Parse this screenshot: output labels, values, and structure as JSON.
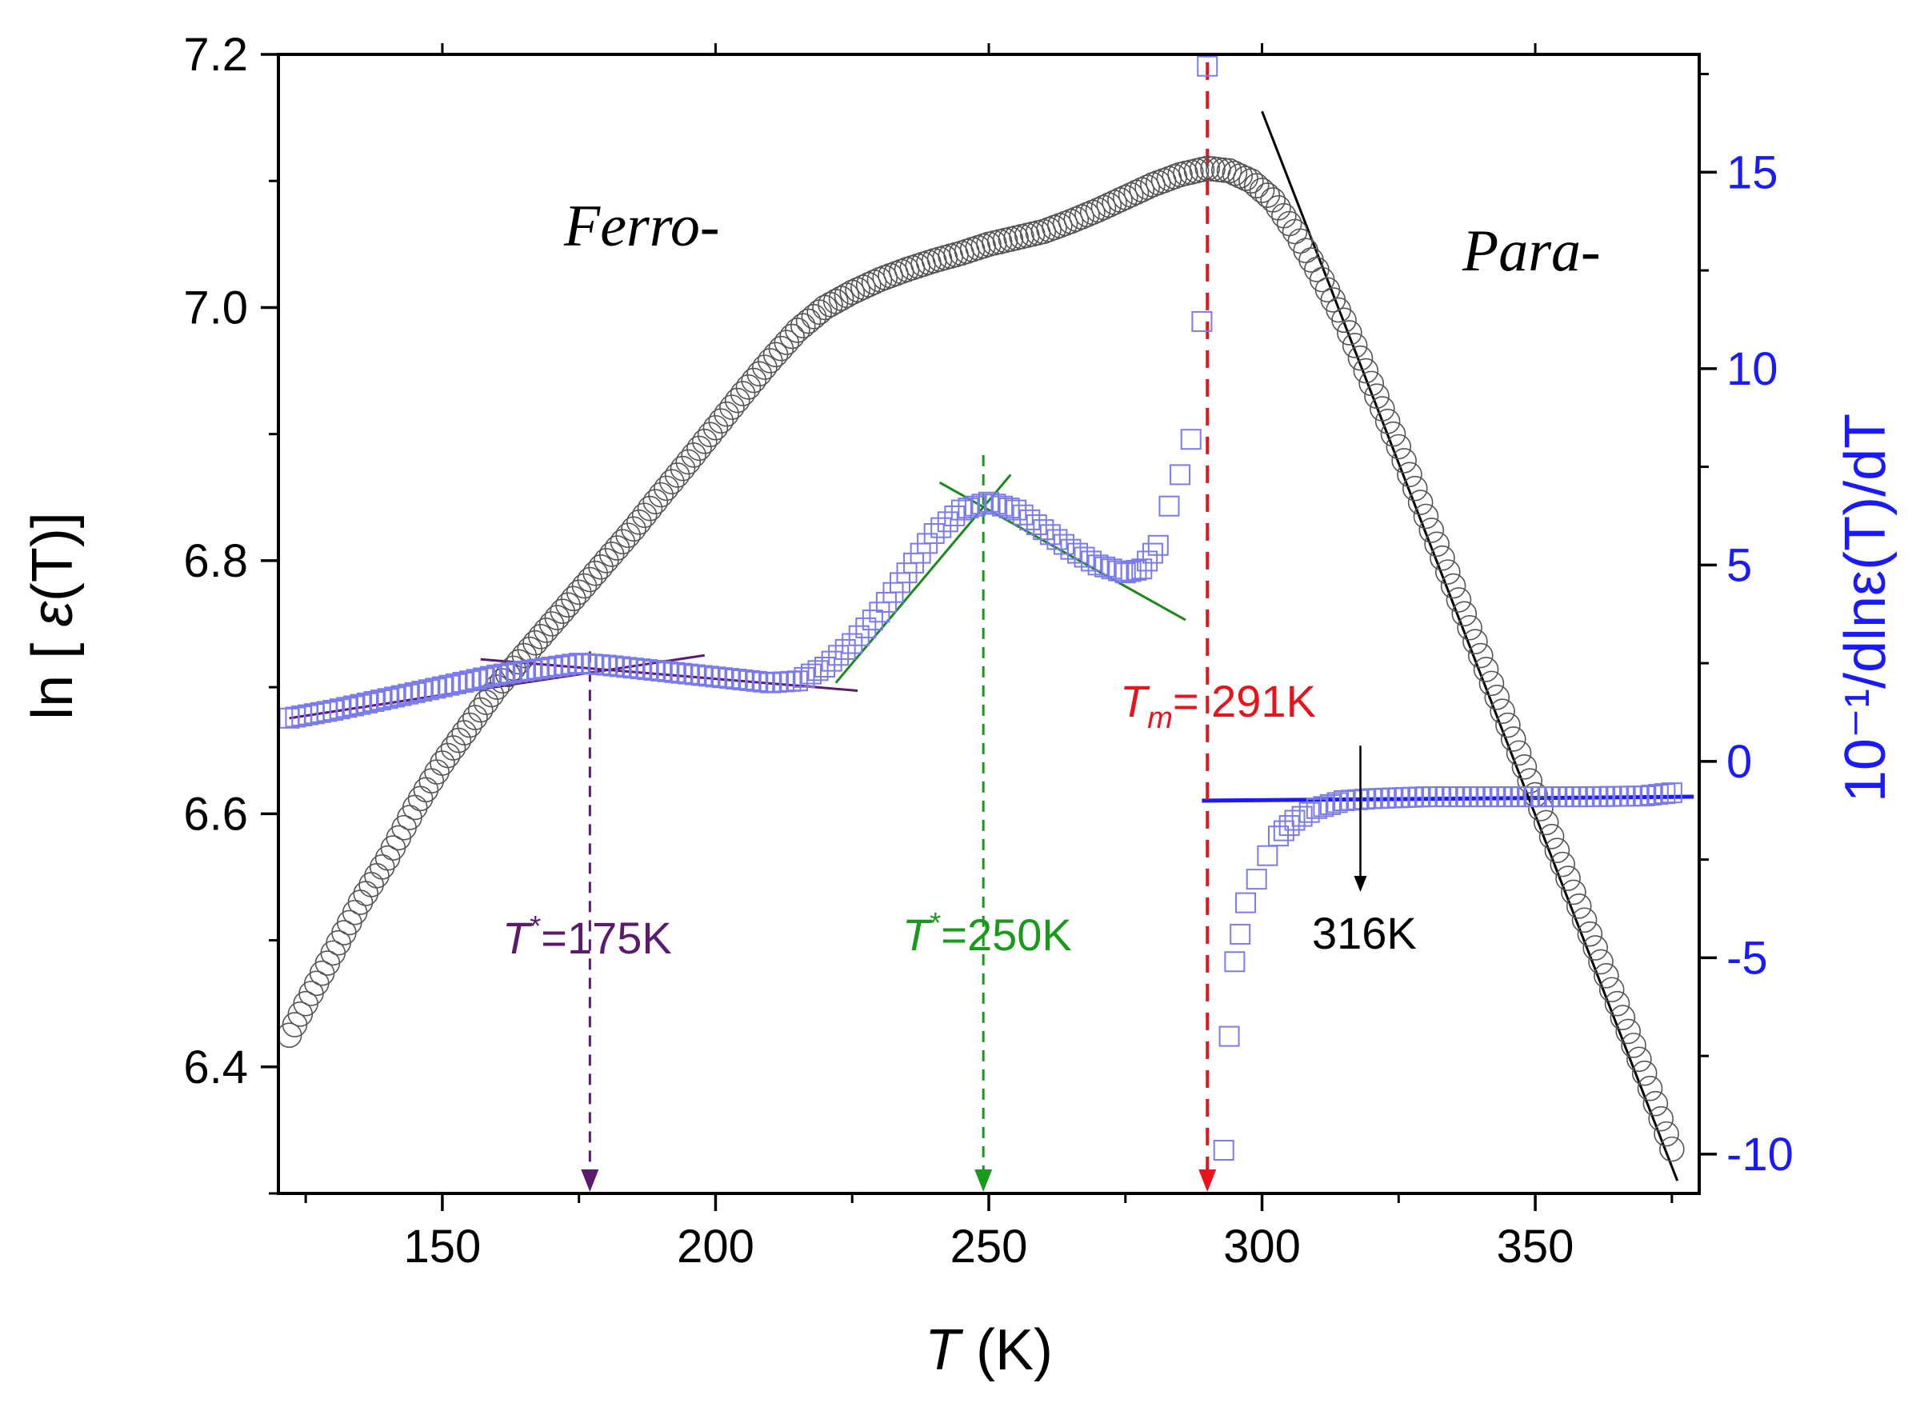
{
  "chart_data": {
    "type": "scatter",
    "x_axis": {
      "label_symbol": "T",
      "label_unit": "(K)",
      "range": [
        120,
        380
      ],
      "ticks": [
        150,
        200,
        250,
        300,
        350
      ],
      "tick_labels": [
        "150",
        "200",
        "250",
        "300",
        "350"
      ]
    },
    "y_left": {
      "label_prefix": "ln [ ",
      "label_epsilon": "ε",
      "label_args": "(T)]",
      "range": [
        6.3,
        7.2
      ],
      "ticks": [
        6.4,
        6.6,
        6.8,
        7.0,
        7.2
      ],
      "tick_labels": [
        "6.4",
        "6.6",
        "6.8",
        "7.0",
        "7.2"
      ]
    },
    "y_right": {
      "label": "10⁻¹/dlnε(T)/dT",
      "color": "#1a1aff",
      "range": [
        -11,
        18
      ],
      "ticks": [
        -10,
        -5,
        0,
        5,
        10,
        15
      ],
      "tick_labels": [
        "-10",
        "-5",
        "0",
        "5",
        "10",
        "15"
      ]
    },
    "series": [
      {
        "name": "ln ε(T)",
        "axis": "left",
        "marker": "circle",
        "color": "#555555",
        "points": [
          [
            122,
            6.425
          ],
          [
            125,
            6.45
          ],
          [
            130,
            6.49
          ],
          [
            135,
            6.53
          ],
          [
            140,
            6.565
          ],
          [
            145,
            6.605
          ],
          [
            150,
            6.64
          ],
          [
            155,
            6.67
          ],
          [
            160,
            6.7
          ],
          [
            165,
            6.725
          ],
          [
            170,
            6.75
          ],
          [
            175,
            6.775
          ],
          [
            180,
            6.8
          ],
          [
            185,
            6.825
          ],
          [
            190,
            6.852
          ],
          [
            195,
            6.878
          ],
          [
            200,
            6.905
          ],
          [
            205,
            6.932
          ],
          [
            210,
            6.958
          ],
          [
            215,
            6.982
          ],
          [
            220,
            7.0
          ],
          [
            225,
            7.012
          ],
          [
            230,
            7.022
          ],
          [
            235,
            7.03
          ],
          [
            240,
            7.037
          ],
          [
            245,
            7.043
          ],
          [
            250,
            7.05
          ],
          [
            255,
            7.055
          ],
          [
            260,
            7.06
          ],
          [
            265,
            7.068
          ],
          [
            270,
            7.077
          ],
          [
            275,
            7.087
          ],
          [
            280,
            7.097
          ],
          [
            285,
            7.105
          ],
          [
            290,
            7.11
          ],
          [
            294,
            7.108
          ],
          [
            298,
            7.1
          ],
          [
            302,
            7.085
          ],
          [
            306,
            7.06
          ],
          [
            310,
            7.03
          ],
          [
            315,
            6.99
          ],
          [
            320,
            6.94
          ],
          [
            325,
            6.89
          ],
          [
            330,
            6.835
          ],
          [
            335,
            6.78
          ],
          [
            340,
            6.725
          ],
          [
            345,
            6.67
          ],
          [
            350,
            6.615
          ],
          [
            355,
            6.56
          ],
          [
            360,
            6.505
          ],
          [
            365,
            6.45
          ],
          [
            370,
            6.395
          ],
          [
            375,
            6.335
          ]
        ]
      },
      {
        "name": "10⁻¹/dlnε(T)/dT",
        "axis": "right",
        "marker": "square",
        "color": "#7b7bf0",
        "points": [
          [
            122,
            1.1
          ],
          [
            130,
            1.3
          ],
          [
            140,
            1.6
          ],
          [
            150,
            1.9
          ],
          [
            160,
            2.2
          ],
          [
            170,
            2.4
          ],
          [
            175,
            2.5
          ],
          [
            180,
            2.45
          ],
          [
            190,
            2.3
          ],
          [
            200,
            2.15
          ],
          [
            210,
            2.0
          ],
          [
            215,
            2.05
          ],
          [
            220,
            2.4
          ],
          [
            225,
            3.0
          ],
          [
            230,
            3.8
          ],
          [
            235,
            4.8
          ],
          [
            240,
            5.8
          ],
          [
            245,
            6.4
          ],
          [
            250,
            6.6
          ],
          [
            255,
            6.4
          ],
          [
            260,
            5.9
          ],
          [
            265,
            5.4
          ],
          [
            270,
            5.0
          ],
          [
            275,
            4.8
          ],
          [
            278,
            4.9
          ],
          [
            281,
            5.5
          ],
          [
            283,
            6.5
          ],
          [
            285,
            7.3
          ],
          [
            287,
            8.2
          ],
          [
            289,
            11.2
          ],
          [
            290,
            17.7
          ],
          [
            293,
            -9.9
          ],
          [
            294,
            -7.0
          ],
          [
            295,
            -5.1
          ],
          [
            296,
            -4.4
          ],
          [
            297,
            -3.6
          ],
          [
            299,
            -3.0
          ],
          [
            301,
            -2.4
          ],
          [
            303,
            -1.9
          ],
          [
            306,
            -1.5
          ],
          [
            310,
            -1.2
          ],
          [
            315,
            -1.0
          ],
          [
            320,
            -0.95
          ],
          [
            330,
            -0.9
          ],
          [
            340,
            -0.9
          ],
          [
            350,
            -0.9
          ],
          [
            360,
            -0.9
          ],
          [
            370,
            -0.88
          ],
          [
            375,
            -0.8
          ]
        ]
      }
    ],
    "fit_lines": [
      {
        "name": "purple-fit-1",
        "axis": "right",
        "color": "#5b1a6e",
        "x": [
          122,
          198
        ],
        "y": [
          1.1,
          2.7
        ]
      },
      {
        "name": "purple-fit-2",
        "axis": "right",
        "color": "#5b1a6e",
        "x": [
          157,
          226
        ],
        "y": [
          2.6,
          1.8
        ]
      },
      {
        "name": "green-fit-1",
        "axis": "right",
        "color": "#1a8a1a",
        "x": [
          222,
          254
        ],
        "y": [
          2.0,
          7.3
        ]
      },
      {
        "name": "green-fit-2",
        "axis": "right",
        "color": "#1a8a1a",
        "x": [
          241,
          286
        ],
        "y": [
          7.1,
          3.6
        ]
      },
      {
        "name": "blue-fit",
        "axis": "right",
        "color": "#1a1aff",
        "x": [
          289,
          379
        ],
        "y": [
          -1.0,
          -0.9
        ]
      },
      {
        "name": "black-fit",
        "axis": "left",
        "color": "#000000",
        "x": [
          300,
          376
        ],
        "y": [
          7.155,
          6.31
        ]
      }
    ],
    "markers": [
      {
        "name": "tstar-175",
        "x": 177,
        "color": "#5b1a6e",
        "label_pre": "T",
        "label_sup": "*",
        "label_post": "=175K"
      },
      {
        "name": "tstar-250",
        "x": 249,
        "color": "#1a9a1a",
        "label_pre": "T",
        "label_sup": "*",
        "label_post": "=250K"
      },
      {
        "name": "tm-291",
        "x": 290,
        "color": "#e8141b",
        "label_pre": "T",
        "label_sub": "m",
        "label_post": "= 291K"
      }
    ],
    "annotations": {
      "ferro": "Ferro-",
      "para": "Para-",
      "arrow_316": "316K"
    }
  }
}
